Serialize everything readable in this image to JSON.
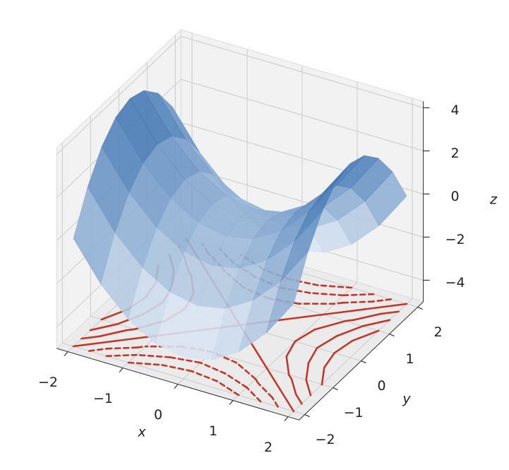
{
  "chart_data": {
    "type": "surface",
    "x": [
      -2,
      -1.5,
      -1,
      -0.5,
      0,
      0.5,
      1,
      1.5,
      2
    ],
    "y": [
      -2,
      -1.5,
      -1,
      -0.5,
      0,
      0.5,
      1,
      1.5,
      2
    ],
    "z": [
      [
        0,
        -1.75,
        -3,
        -3.75,
        -4,
        -3.75,
        -3,
        -1.75,
        0
      ],
      [
        1.75,
        0,
        -1.25,
        -2,
        -2.25,
        -2,
        -1.25,
        0,
        1.75
      ],
      [
        3,
        1.25,
        0,
        -0.75,
        -1,
        -0.75,
        0,
        1.25,
        3
      ],
      [
        3.75,
        2,
        0.75,
        0,
        -0.25,
        0,
        0.75,
        2,
        3.75
      ],
      [
        4,
        2.25,
        1,
        0.25,
        0,
        0.25,
        1,
        2.25,
        4
      ],
      [
        3.75,
        2,
        0.75,
        0,
        -0.25,
        0,
        0.75,
        2,
        3.75
      ],
      [
        3,
        1.25,
        0,
        -0.75,
        -1,
        -0.75,
        0,
        1.25,
        3
      ],
      [
        1.75,
        0,
        -1.25,
        -2,
        -2.25,
        -2,
        -1.25,
        0,
        1.75
      ],
      [
        0,
        -1.75,
        -3,
        -3.75,
        -4,
        -3.75,
        -3,
        -1.75,
        0
      ]
    ],
    "xlabel": "x",
    "ylabel": "y",
    "zlabel": "z",
    "xlim": [
      -2.2,
      2.2
    ],
    "ylim": [
      -2.2,
      2.2
    ],
    "zlim": [
      -5,
      4.3
    ],
    "xticks": [
      {
        "value": -2,
        "label": "−2"
      },
      {
        "value": -1,
        "label": "−1"
      },
      0,
      1,
      2
    ],
    "yticks": [
      {
        "value": -2,
        "label": "−2"
      },
      {
        "value": -1,
        "label": "−1"
      },
      0,
      1,
      2
    ],
    "zticks": [
      {
        "value": -4,
        "label": "−4"
      },
      {
        "value": -2,
        "label": "−2"
      },
      0,
      2,
      4
    ],
    "colormap": [
      "#f2f7fd",
      "#2a66aa"
    ],
    "contour_levels": [
      -3,
      -2,
      -1,
      0,
      1,
      2,
      3
    ],
    "contour_color": "#c0392b",
    "grid": true
  }
}
